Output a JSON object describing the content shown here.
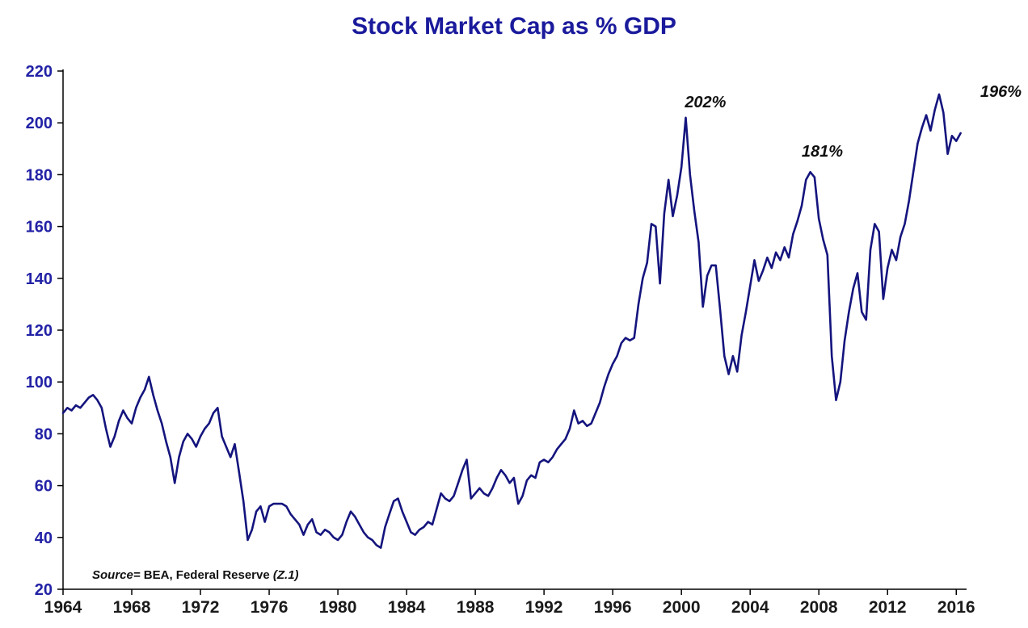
{
  "chart_data": {
    "type": "line",
    "title": "Stock Market Cap as % GDP",
    "xlabel": "",
    "ylabel": "",
    "x_ticks": [
      1964,
      1968,
      1972,
      1976,
      1980,
      1984,
      1988,
      1992,
      1996,
      2000,
      2004,
      2008,
      2012,
      2016
    ],
    "y_ticks": [
      20,
      40,
      60,
      80,
      100,
      120,
      140,
      160,
      180,
      200,
      220
    ],
    "x_range": [
      1964,
      2016.6
    ],
    "y_range": [
      20,
      220
    ],
    "grid": false,
    "legend": "none",
    "line_color": "#14147e",
    "axis_color": "#000000",
    "series": [
      {
        "name": "Stock Market Cap as % GDP",
        "period": "quarterly",
        "start_year": 1964,
        "values": [
          88,
          90,
          89,
          91,
          90,
          92,
          94,
          95,
          93,
          90,
          82,
          75,
          79,
          85,
          89,
          86,
          84,
          90,
          94,
          97,
          102,
          95,
          89,
          84,
          77,
          71,
          61,
          71,
          77,
          80,
          78,
          75,
          79,
          82,
          84,
          88,
          90,
          79,
          75,
          71,
          76,
          65,
          54,
          39,
          43,
          50,
          52,
          46,
          52,
          53,
          53,
          53,
          52,
          49,
          47,
          45,
          41,
          45,
          47,
          42,
          41,
          43,
          42,
          40,
          39,
          41,
          46,
          50,
          48,
          45,
          42,
          40,
          39,
          37,
          36,
          44,
          49,
          54,
          55,
          50,
          46,
          42,
          41,
          43,
          44,
          46,
          45,
          51,
          57,
          55,
          54,
          56,
          61,
          66,
          70,
          55,
          57,
          59,
          57,
          56,
          59,
          63,
          66,
          64,
          61,
          63,
          53,
          56,
          62,
          64,
          63,
          69,
          70,
          69,
          71,
          74,
          76,
          78,
          82,
          89,
          84,
          85,
          83,
          84,
          88,
          92,
          98,
          103,
          107,
          110,
          115,
          117,
          116,
          117,
          130,
          140,
          146,
          161,
          160,
          138,
          165,
          178,
          164,
          172,
          183,
          202,
          180,
          166,
          154,
          129,
          141,
          145,
          145,
          128,
          110,
          103,
          110,
          104,
          118,
          127,
          137,
          147,
          139,
          143,
          148,
          144,
          150,
          147,
          152,
          148,
          157,
          162,
          168,
          178,
          181,
          179,
          163,
          155,
          149,
          110,
          93,
          100,
          116,
          127,
          136,
          142,
          127,
          124,
          151,
          161,
          158,
          132,
          144,
          151,
          147,
          156,
          161,
          170,
          181,
          192,
          198,
          203,
          197,
          205,
          211,
          204,
          188,
          195,
          193,
          196
        ]
      }
    ],
    "annotations": [
      {
        "text": "202%",
        "x": 2001.4,
        "y": 206
      },
      {
        "text": "181%",
        "x": 2008.2,
        "y": 187
      },
      {
        "text": "196%",
        "x": 2018.6,
        "y": 210
      }
    ],
    "source": {
      "prefix": "Source=",
      "body": " BEA, Federal Reserve ",
      "suffix": "(Z.1)"
    }
  }
}
